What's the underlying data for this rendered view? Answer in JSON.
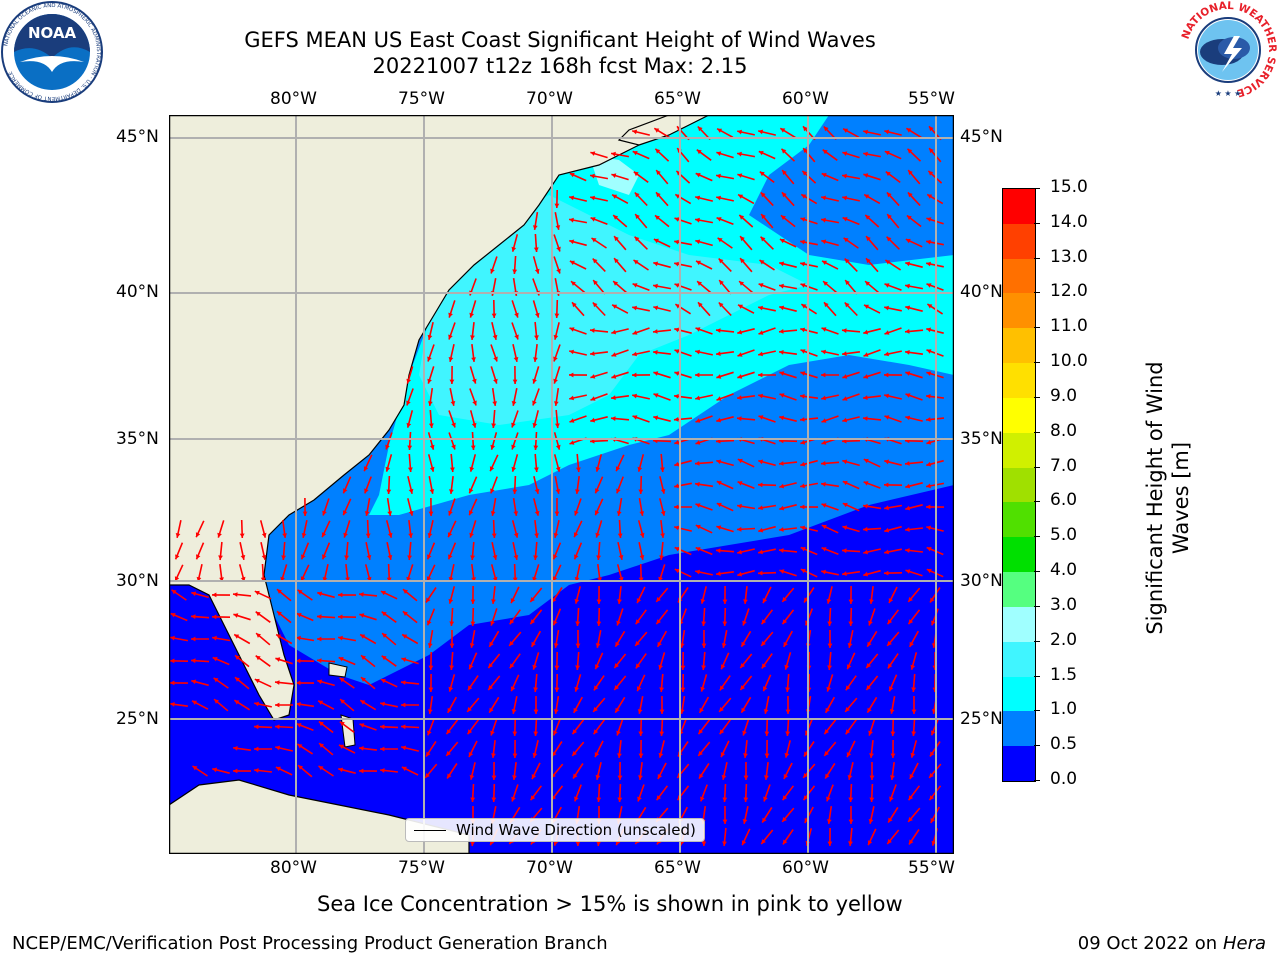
{
  "header": {
    "title_line1": "GEFS MEAN US East Coast Significant Height of Wind Waves",
    "title_line2": "20221007 t12z 168h fcst   Max: 2.15"
  },
  "logos": {
    "left": "NOAA",
    "left_ring_text": "NATIONAL OCEANIC AND ATMOSPHERIC ADMINISTRATION · U.S. DEPARTMENT OF COMMERCE",
    "right_ring_text": "NATIONAL WEATHER SERVICE"
  },
  "map": {
    "lon_labels": [
      "80°W",
      "75°W",
      "70°W",
      "65°W",
      "60°W",
      "55°W"
    ],
    "lat_labels": [
      "45°N",
      "40°N",
      "35°N",
      "30°N",
      "25°N"
    ],
    "legend": "Wind Wave Direction (unscaled)",
    "colors": {
      "land": "#eeeedc",
      "vector": "#ff0000",
      "grid": "#b0b0b0"
    }
  },
  "colorbar": {
    "label_line1": "Significant Height of Wind",
    "label_line2": "Waves [m]",
    "ticks": [
      "0.0",
      "0.5",
      "1.0",
      "1.5",
      "2.0",
      "3.0",
      "4.0",
      "5.0",
      "6.0",
      "7.0",
      "8.0",
      "9.0",
      "10.0",
      "11.0",
      "12.0",
      "13.0",
      "14.0",
      "15.0"
    ],
    "colors": [
      "#0000ff",
      "#0080ff",
      "#00ffff",
      "#40f5ff",
      "#a0ffff",
      "#55ff80",
      "#00e000",
      "#50e000",
      "#a0e000",
      "#d0f000",
      "#ffff00",
      "#ffe000",
      "#ffc000",
      "#ff9000",
      "#ff7000",
      "#ff4000",
      "#ff0000"
    ]
  },
  "note": "Sea Ice Concentration > 15% is shown in pink to yellow",
  "footer": {
    "left": "NCEP/EMC/Verification Post Processing Product Generation Branch",
    "right_date": "09 Oct 2022 on",
    "right_host": "Hera"
  }
}
